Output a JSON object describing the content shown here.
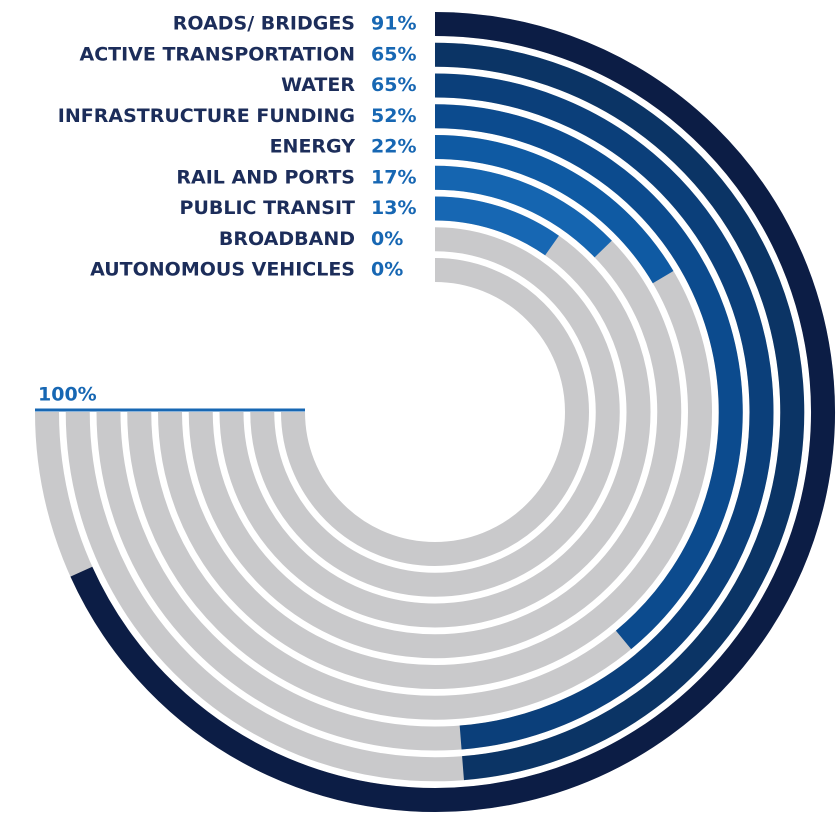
{
  "chart_data": {
    "type": "radial-bar",
    "categories": [
      "ROADS/ BRIDGES",
      "ACTIVE TRANSPORTATION",
      "WATER",
      "INFRASTRUCTURE FUNDING",
      "ENERGY",
      "RAIL AND PORTS",
      "PUBLIC TRANSIT",
      "BROADBAND",
      "AUTONOMOUS VEHICLES"
    ],
    "values": [
      91,
      65,
      65,
      52,
      22,
      17,
      13,
      0,
      0
    ],
    "value_labels": [
      "91%",
      "65%",
      "65%",
      "52%",
      "22%",
      "17%",
      "13%",
      "0%",
      "0%"
    ],
    "colors": [
      "#0c1d45",
      "#0b3465",
      "#0b3f7a",
      "#0c4b8e",
      "#0f5aa3",
      "#1565b0",
      "#1767b3",
      "#1767b3",
      "#1767b3"
    ],
    "track_color": "#c9c9cb",
    "rlim": [
      0,
      100
    ],
    "annotation": "100%"
  }
}
